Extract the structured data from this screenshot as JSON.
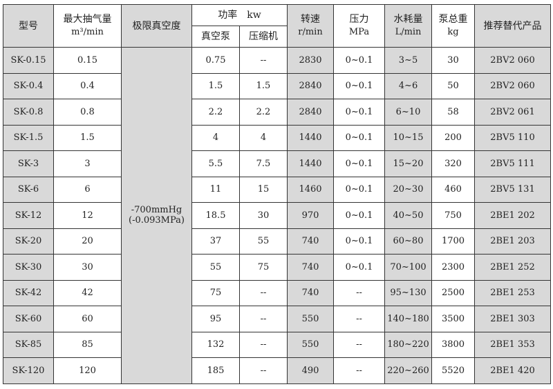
{
  "headers": {
    "model": "型号",
    "flow": "最大抽气量",
    "flow_unit": "m³/min",
    "vacuum": "极限真空度",
    "power": "功率　kw",
    "power_pump": "真空泵",
    "power_comp": "压缩机",
    "speed": "转速",
    "speed_unit": "r/min",
    "pressure": "压力",
    "pressure_unit": "MPa",
    "water": "水耗量",
    "water_unit": "L/min",
    "weight": "泵总重",
    "weight_unit": "kg",
    "replace": "推荐替代产品"
  },
  "vacuum_value": "-700mmHg",
  "vacuum_value2": "(-0.093MPa)",
  "rows": [
    [
      "SK-0.15",
      "0.15",
      "0.75",
      "--",
      "2830",
      "0~0.1",
      "3~5",
      "30",
      "2BV2 060"
    ],
    [
      "SK-0.4",
      "0.4",
      "1.5",
      "1.5",
      "2840",
      "0~0.1",
      "4~6",
      "50",
      "2BV2 060"
    ],
    [
      "SK-0.8",
      "0.8",
      "2.2",
      "2.2",
      "2840",
      "0~0.1",
      "6~10",
      "58",
      "2BV2 061"
    ],
    [
      "SK-1.5",
      "1.5",
      "4",
      "4",
      "1440",
      "0~0.1",
      "10~15",
      "200",
      "2BV5 110"
    ],
    [
      "SK-3",
      "3",
      "5.5",
      "7.5",
      "1440",
      "0~0.1",
      "15~20",
      "320",
      "2BV5 111"
    ],
    [
      "SK-6",
      "6",
      "11",
      "15",
      "1460",
      "0~0.1",
      "20~30",
      "460",
      "2BV5 131"
    ],
    [
      "SK-12",
      "12",
      "18.5",
      "30",
      "970",
      "0~0.1",
      "40~50",
      "750",
      "2BE1 202"
    ],
    [
      "SK-20",
      "20",
      "37",
      "55",
      "740",
      "0~0.1",
      "60~80",
      "1700",
      "2BE1 203"
    ],
    [
      "SK-30",
      "30",
      "55",
      "75",
      "740",
      "0~0.1",
      "70~100",
      "2300",
      "2BE1 252"
    ],
    [
      "SK-42",
      "42",
      "75",
      "--",
      "740",
      "--",
      "95~130",
      "2500",
      "2BE1 253"
    ],
    [
      "SK-60",
      "60",
      "95",
      "--",
      "550",
      "--",
      "140~180",
      "3500",
      "2BE1 303"
    ],
    [
      "SK-85",
      "85",
      "132",
      "--",
      "550",
      "--",
      "180~220",
      "3800",
      "2BE1 353"
    ],
    [
      "SK-120",
      "120",
      "185",
      "--",
      "490",
      "--",
      "220~260",
      "5520",
      "2BE1 420"
    ]
  ]
}
